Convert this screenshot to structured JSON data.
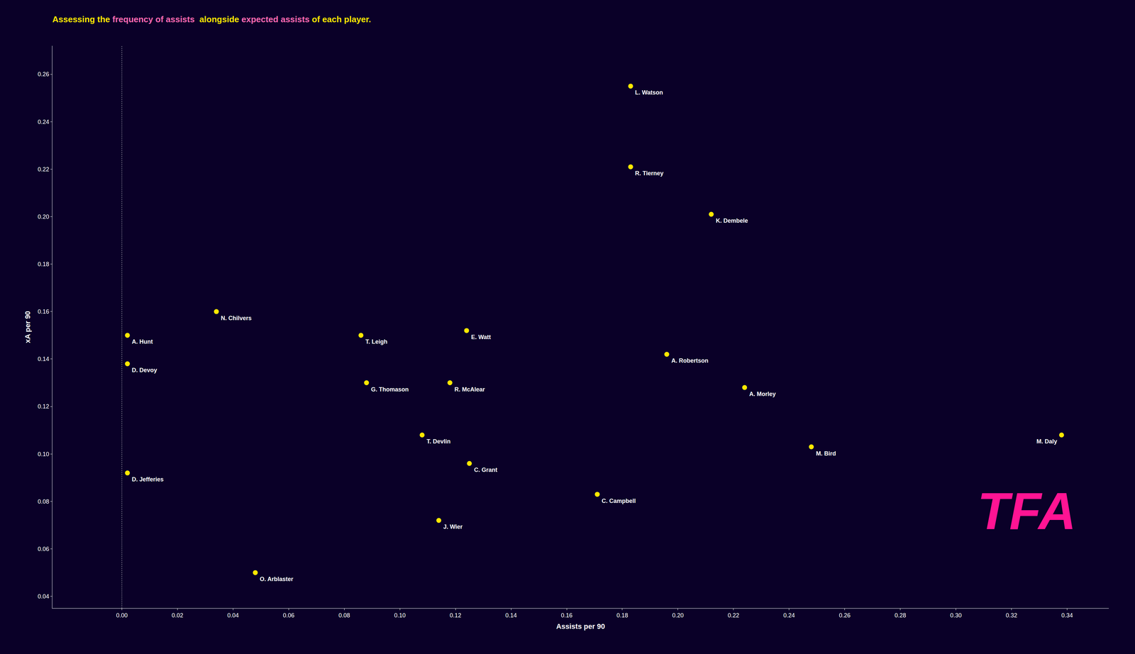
{
  "chart_data": {
    "type": "scatter",
    "title_parts": [
      {
        "text": "Assessing the ",
        "color": "#FFE800"
      },
      {
        "text": "frequency of assists",
        "color": "#FF69B4"
      },
      {
        "text": "  alongside ",
        "color": "#FFE800"
      },
      {
        "text": "expected assists",
        "color": "#FF69B4"
      },
      {
        "text": " of each player.",
        "color": "#FFE800"
      }
    ],
    "xlabel": "Assists per 90",
    "ylabel": "xA per 90",
    "labels": [
      "L. Watson",
      "R. Tierney",
      "K. Dembele",
      "N. Chilvers",
      "A. Hunt",
      "D. Devoy",
      "T. Leigh",
      "E. Watt",
      "A. Robertson",
      "G. Thomason",
      "R. McAlear",
      "A. Morley",
      "T. Devlin",
      "C. Grant",
      "M. Bird",
      "M. Daly",
      "C. Campbell",
      "J. Wier",
      "D. Jefferies",
      "O. Arblaster"
    ],
    "x": [
      0.183,
      0.183,
      0.212,
      0.034,
      0.002,
      0.002,
      0.086,
      0.124,
      0.196,
      0.088,
      0.118,
      0.224,
      0.108,
      0.125,
      0.248,
      0.338,
      0.171,
      0.114,
      0.002,
      0.048
    ],
    "values": [
      0.255,
      0.221,
      0.201,
      0.16,
      0.15,
      0.138,
      0.15,
      0.152,
      0.142,
      0.13,
      0.13,
      0.128,
      0.108,
      0.096,
      0.103,
      0.108,
      0.083,
      0.072,
      0.092,
      0.05
    ],
    "color": "#FFE800",
    "xlim": [
      -0.025,
      0.355
    ],
    "ylim": [
      0.035,
      0.272
    ],
    "xticks": [
      {
        "value": 0.0,
        "label": "0.00"
      },
      {
        "value": 0.02,
        "label": "0.02"
      },
      {
        "value": 0.04,
        "label": "0.04"
      },
      {
        "value": 0.06,
        "label": "0.06"
      },
      {
        "value": 0.08,
        "label": "0.08"
      },
      {
        "value": 0.1,
        "label": "0.10"
      },
      {
        "value": 0.12,
        "label": "0.12"
      },
      {
        "value": 0.14,
        "label": "0.14"
      },
      {
        "value": 0.16,
        "label": "0.16"
      },
      {
        "value": 0.18,
        "label": "0.18"
      },
      {
        "value": 0.2,
        "label": "0.20"
      },
      {
        "value": 0.22,
        "label": "0.22"
      },
      {
        "value": 0.24,
        "label": "0.24"
      },
      {
        "value": 0.26,
        "label": "0.26"
      },
      {
        "value": 0.28,
        "label": "0.28"
      },
      {
        "value": 0.3,
        "label": "0.30"
      },
      {
        "value": 0.32,
        "label": "0.32"
      },
      {
        "value": 0.34,
        "label": "0.34"
      }
    ],
    "yticks": [
      {
        "value": 0.04,
        "label": "0.04"
      },
      {
        "value": 0.06,
        "label": "0.06"
      },
      {
        "value": 0.08,
        "label": "0.08"
      },
      {
        "value": 0.1,
        "label": "0.10"
      },
      {
        "value": 0.12,
        "label": "0.12"
      },
      {
        "value": 0.14,
        "label": "0.14"
      },
      {
        "value": 0.16,
        "label": "0.16"
      },
      {
        "value": 0.18,
        "label": "0.18"
      },
      {
        "value": 0.2,
        "label": "0.20"
      },
      {
        "value": 0.22,
        "label": "0.22"
      },
      {
        "value": 0.24,
        "label": "0.24"
      },
      {
        "value": 0.26,
        "label": "0.26"
      }
    ],
    "vline_x": 0.0,
    "annotations": [
      {
        "text": "TFA",
        "color": "#FF1493"
      }
    ],
    "grid": false
  }
}
